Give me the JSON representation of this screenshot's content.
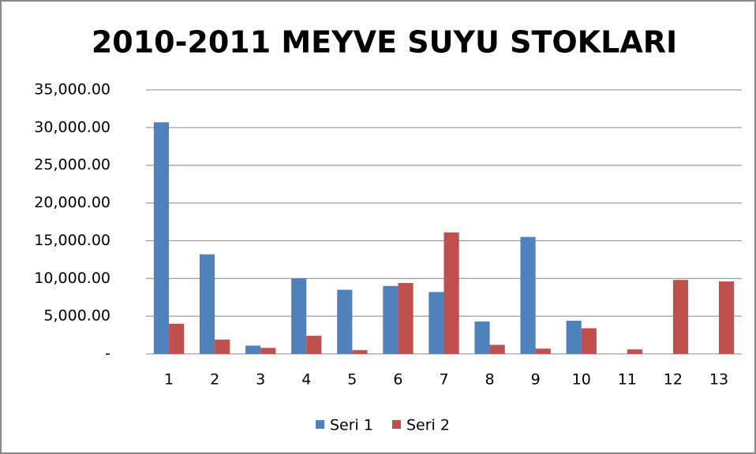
{
  "chart_data": {
    "type": "bar",
    "title": "2010-2011 MEYVE SUYU STOKLARI",
    "categories": [
      "1",
      "2",
      "3",
      "4",
      "5",
      "6",
      "7",
      "8",
      "9",
      "10",
      "11",
      "12",
      "13"
    ],
    "series": [
      {
        "name": "Seri 1",
        "color": "#4f81bd",
        "values": [
          30700,
          13200,
          1100,
          10000,
          8500,
          9000,
          8200,
          4300,
          15500,
          4400,
          0,
          0,
          0
        ]
      },
      {
        "name": "Seri 2",
        "color": "#c0504d",
        "values": [
          4000,
          1900,
          800,
          2400,
          500,
          9400,
          16100,
          1200,
          700,
          3400,
          600,
          9800,
          9600
        ]
      }
    ],
    "ylim": [
      0,
      35000
    ],
    "yticks": [
      {
        "value": 0,
        "label": "-"
      },
      {
        "value": 5000,
        "label": "5,000.00"
      },
      {
        "value": 10000,
        "label": "10,000.00"
      },
      {
        "value": 15000,
        "label": "15,000.00"
      },
      {
        "value": 20000,
        "label": "20,000.00"
      },
      {
        "value": 25000,
        "label": "25,000.00"
      },
      {
        "value": 30000,
        "label": "30,000.00"
      },
      {
        "value": 35000,
        "label": "35,000.00"
      }
    ],
    "grid": true,
    "legend": "bottom"
  }
}
